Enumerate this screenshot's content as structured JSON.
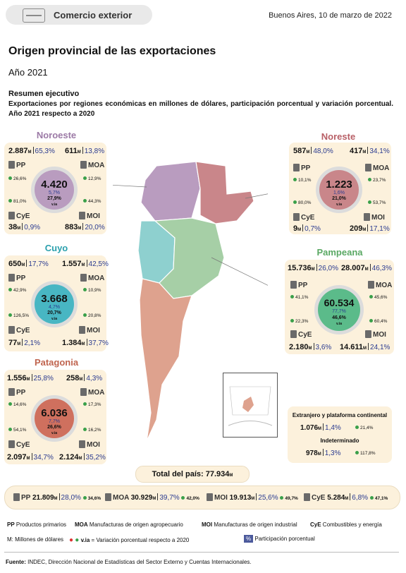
{
  "header": {
    "badge": "Comercio exterior",
    "date": "Buenos Aires, 10 de marzo de 2022"
  },
  "title": "Origen provincial de las exportaciones",
  "subtitle": "Año 2021",
  "summary": {
    "heading": "Resumen ejecutivo",
    "text": "Exportaciones por regiones económicas en millones de dólares, participación porcentual y variación porcentual. Año 2021 respecto a 2020"
  },
  "regions": {
    "noroeste": {
      "name": "Noroeste",
      "total": "4.420",
      "share": "5,7%",
      "var": "27,9%",
      "pp": {
        "val": "2.887",
        "pct": "65,3%",
        "var": "26,6%"
      },
      "moa": {
        "val": "611",
        "pct": "13,8%",
        "var": "12,9%"
      },
      "cye": {
        "val": "38",
        "pct": "0,9%",
        "var": "81,0%"
      },
      "moi": {
        "val": "883",
        "pct": "20,0%",
        "var": "44,3%"
      }
    },
    "noreste": {
      "name": "Noreste",
      "total": "1.223",
      "share": "1,6%",
      "var": "21,0%",
      "pp": {
        "val": "587",
        "pct": "48,0%",
        "var": "10,1%"
      },
      "moa": {
        "val": "417",
        "pct": "34,1%",
        "var": "23,7%"
      },
      "cye": {
        "val": "9",
        "pct": "0,7%",
        "var": "80,0%"
      },
      "moi": {
        "val": "209",
        "pct": "17,1%",
        "var": "53,7%"
      }
    },
    "cuyo": {
      "name": "Cuyo",
      "total": "3.668",
      "share": "4,7%",
      "var": "20,7%",
      "pp": {
        "val": "650",
        "pct": "17,7%",
        "var": "42,9%"
      },
      "moa": {
        "val": "1.557",
        "pct": "42,5%",
        "var": "10,9%"
      },
      "cye": {
        "val": "77",
        "pct": "2,1%",
        "var": "126,5%"
      },
      "moi": {
        "val": "1.384",
        "pct": "37,7%",
        "var": "20,8%"
      }
    },
    "pampeana": {
      "name": "Pampeana",
      "total": "60.534",
      "share": "77,7%",
      "var": "46,6%",
      "pp": {
        "val": "15.736",
        "pct": "26,0%",
        "var": "41,1%"
      },
      "moa": {
        "val": "28.007",
        "pct": "46,3%",
        "var": "45,6%"
      },
      "cye": {
        "val": "2.180",
        "pct": "3,6%",
        "var": "22,3%"
      },
      "moi": {
        "val": "14.611",
        "pct": "24,1%",
        "var": "60,4%"
      }
    },
    "patagonia": {
      "name": "Patagonia",
      "total": "6.036",
      "share": "7,7%",
      "var": "26,6%",
      "pp": {
        "val": "1.556",
        "pct": "25,8%",
        "var": "14,6%"
      },
      "moa": {
        "val": "258",
        "pct": "4,3%",
        "var": "17,3%"
      },
      "cye": {
        "val": "2.097",
        "pct": "34,7%",
        "var": "54,1%"
      },
      "moi": {
        "val": "2.124",
        "pct": "35,2%",
        "var": "16,2%"
      }
    }
  },
  "extra": {
    "ext_label": "Extranjero y plataforma continental",
    "ext_val": "1.076",
    "ext_pct": "1,4%",
    "ext_var": "21,4%",
    "ind_label": "Indeterminado",
    "ind_val": "978",
    "ind_pct": "1,3%",
    "ind_var": "117,8%"
  },
  "total": {
    "label": "Total del país:",
    "value": "77.934"
  },
  "bar": {
    "pp": {
      "val": "21.809",
      "pct": "28,0%",
      "var": "34,6%"
    },
    "moa": {
      "val": "30.929",
      "pct": "39,7%",
      "var": "42,0%"
    },
    "moi": {
      "val": "19.913",
      "pct": "25,6%",
      "var": "49,7%"
    },
    "cye": {
      "val": "5.284",
      "pct": "6,8%",
      "var": "47,1%"
    }
  },
  "labels": {
    "pp": "PP",
    "moa": "MOA",
    "moi": "MOI",
    "cye": "CyE",
    "m": "M",
    "via": "v.ia"
  },
  "legend": {
    "pp": "Productos primarios",
    "moa": "Manufacturas de origen agropecuario",
    "moi": "Manufacturas de origen industrial",
    "cye": "Combustibles y energía",
    "m": "M: Millones de dólares",
    "via": "v.ia",
    "via_text": "= Variación porcentual respecto a 2020",
    "pct_sym": "%",
    "pct_text": "Participación porcentual"
  },
  "source": {
    "label": "Fuente:",
    "text": "INDEC, Dirección Nacional de Estadísticas del Sector Externo y Cuentas Internacionales."
  },
  "colors": {
    "noroeste": "#b99cbf",
    "noreste": "#c9868a",
    "cuyo": "#8ed0cf",
    "pampeana": "#a6cfa6",
    "patagonia": "#dea28e",
    "card": "#fcf1dc",
    "accent": "#2a3b90"
  }
}
